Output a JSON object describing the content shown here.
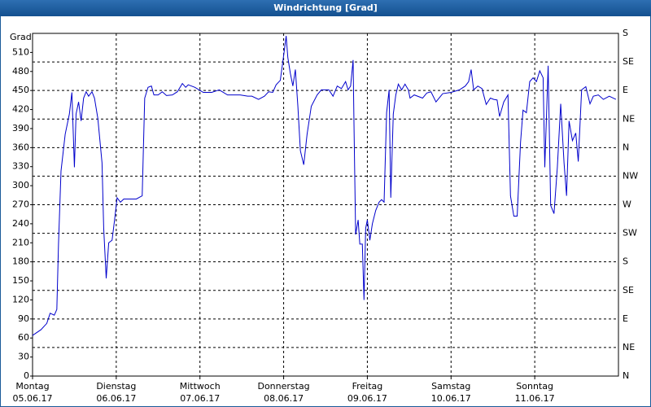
{
  "chart_data": {
    "type": "line",
    "title": "Windrichtung [Grad]",
    "y_label": "Grad",
    "color": "#0000cc",
    "grid": true,
    "xlim": [
      0,
      7
    ],
    "ylim": [
      0,
      540
    ],
    "y2lim": [
      0,
      540
    ],
    "yticks": [
      0,
      30,
      60,
      90,
      120,
      150,
      180,
      210,
      240,
      270,
      300,
      330,
      360,
      390,
      420,
      450,
      480,
      510
    ],
    "y2ticks": [
      {
        "value": 0,
        "label": "N"
      },
      {
        "value": 45,
        "label": "NE"
      },
      {
        "value": 90,
        "label": "E"
      },
      {
        "value": 135,
        "label": "SE"
      },
      {
        "value": 180,
        "label": "S"
      },
      {
        "value": 225,
        "label": "SW"
      },
      {
        "value": 270,
        "label": "W"
      },
      {
        "value": 315,
        "label": "NW"
      },
      {
        "value": 360,
        "label": "N"
      },
      {
        "value": 405,
        "label": "NE"
      },
      {
        "value": 450,
        "label": "E"
      },
      {
        "value": 495,
        "label": "SE"
      },
      {
        "value": 540,
        "label": "S"
      }
    ],
    "xticks": [
      {
        "value": 0,
        "label": "Montag",
        "date": "05.06.17"
      },
      {
        "value": 1,
        "label": "Dienstag",
        "date": "06.06.17"
      },
      {
        "value": 2,
        "label": "Mittwoch",
        "date": "07.06.17"
      },
      {
        "value": 3,
        "label": "Donnerstag",
        "date": "08.06.17"
      },
      {
        "value": 4,
        "label": "Freitag",
        "date": "09.06.17"
      },
      {
        "value": 5,
        "label": "Samstag",
        "date": "10.06.17"
      },
      {
        "value": 6,
        "label": "Sonntag",
        "date": "11.06.17"
      }
    ],
    "x": [
      0,
      0.1,
      0.17,
      0.21,
      0.26,
      0.29,
      0.31,
      0.34,
      0.39,
      0.44,
      0.47,
      0.5,
      0.52,
      0.55,
      0.58,
      0.61,
      0.64,
      0.67,
      0.71,
      0.74,
      0.78,
      0.83,
      0.85,
      0.88,
      0.91,
      0.95,
      0.98,
      1.01,
      1.05,
      1.09,
      1.17,
      1.24,
      1.28,
      1.31,
      1.34,
      1.38,
      1.42,
      1.45,
      1.5,
      1.55,
      1.6,
      1.67,
      1.73,
      1.79,
      1.83,
      1.86,
      1.94,
      2.04,
      2.14,
      2.23,
      2.33,
      2.48,
      2.57,
      2.62,
      2.7,
      2.77,
      2.82,
      2.87,
      2.91,
      2.96,
      3.01,
      3.03,
      3.05,
      3.08,
      3.11,
      3.14,
      3.17,
      3.2,
      3.24,
      3.28,
      3.33,
      3.4,
      3.45,
      3.5,
      3.54,
      3.59,
      3.64,
      3.69,
      3.74,
      3.77,
      3.8,
      3.83,
      3.84,
      3.86,
      3.89,
      3.91,
      3.94,
      3.96,
      3.98,
      4.0,
      4.03,
      4.06,
      4.1,
      4.14,
      4.17,
      4.2,
      4.23,
      4.26,
      4.28,
      4.31,
      4.34,
      4.37,
      4.41,
      4.45,
      4.49,
      4.51,
      4.56,
      4.66,
      4.71,
      4.76,
      4.82,
      4.9,
      5.0,
      5.1,
      5.17,
      5.21,
      5.24,
      5.27,
      5.32,
      5.37,
      5.42,
      5.47,
      5.51,
      5.55,
      5.58,
      5.63,
      5.68,
      5.71,
      5.75,
      5.79,
      5.83,
      5.86,
      5.9,
      5.94,
      5.98,
      6.02,
      6.06,
      6.1,
      6.12,
      6.16,
      6.19,
      6.23,
      6.27,
      6.31,
      6.35,
      6.38,
      6.41,
      6.45,
      6.49,
      6.52,
      6.56,
      6.61,
      6.66,
      6.7,
      6.76,
      6.82,
      6.89,
      6.97
    ],
    "values": [
      64,
      73,
      83,
      99,
      96,
      105,
      208,
      323,
      381,
      413,
      447,
      329,
      413,
      432,
      402,
      438,
      448,
      441,
      448,
      438,
      406,
      336,
      233,
      154,
      210,
      214,
      246,
      281,
      274,
      279,
      279,
      279,
      282,
      284,
      438,
      455,
      457,
      443,
      443,
      448,
      442,
      443,
      448,
      461,
      455,
      459,
      455,
      447,
      447,
      451,
      443,
      443,
      441,
      441,
      436,
      441,
      448,
      447,
      459,
      466,
      515,
      536,
      502,
      477,
      457,
      483,
      425,
      355,
      333,
      381,
      425,
      443,
      451,
      451,
      451,
      441,
      457,
      453,
      464,
      451,
      457,
      498,
      400,
      223,
      246,
      208,
      208,
      120,
      233,
      246,
      214,
      240,
      261,
      274,
      278,
      274,
      415,
      451,
      281,
      413,
      443,
      460,
      451,
      460,
      451,
      438,
      443,
      438,
      446,
      448,
      432,
      445,
      447,
      451,
      457,
      464,
      483,
      451,
      457,
      453,
      428,
      438,
      436,
      435,
      409,
      432,
      443,
      284,
      252,
      252,
      368,
      419,
      415,
      464,
      470,
      464,
      481,
      470,
      329,
      489,
      269,
      256,
      329,
      429,
      336,
      284,
      402,
      371,
      383,
      338,
      451,
      456,
      429,
      441,
      443,
      436,
      441,
      436
    ]
  }
}
